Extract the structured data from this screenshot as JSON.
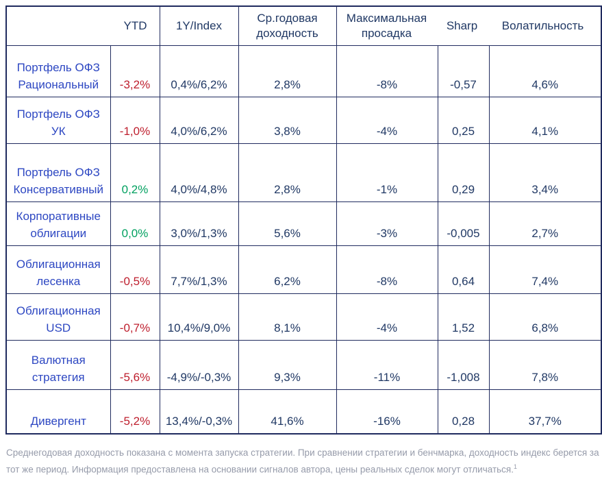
{
  "table": {
    "headers": {
      "ytd": "YTD",
      "one_year_index": "1Y/Index",
      "avg_return_line1": "Ср.годовая",
      "avg_return_line2": "доходность",
      "max_drawdown_line1": "Максимальная",
      "max_drawdown_line2": "просадка",
      "sharp": "Sharp",
      "volatility": "Волатильность"
    },
    "rows": [
      {
        "name_lines": [
          "Портфель ОФЗ",
          "Рациональный"
        ],
        "ytd": "-3,2%",
        "ytd_tone": "negative",
        "one_year_index": "0,4%/6,2%",
        "avg_return": "2,8%",
        "max_drawdown": "-8%",
        "sharp": "-0,57",
        "volatility": "4,6%"
      },
      {
        "name_lines": [
          "Портфель ОФЗ",
          "УК"
        ],
        "ytd": "-1,0%",
        "ytd_tone": "negative",
        "one_year_index": "4,0%/6,2%",
        "avg_return": "3,8%",
        "max_drawdown": "-4%",
        "sharp": "0,25",
        "volatility": "4,1%"
      },
      {
        "name_lines": [
          "Портфель ОФЗ",
          "Консервативный"
        ],
        "ytd": "0,2%",
        "ytd_tone": "positive",
        "one_year_index": "4,0%/4,8%",
        "avg_return": "2,8%",
        "max_drawdown": "-1%",
        "sharp": "0,29",
        "volatility": "3,4%"
      },
      {
        "name_lines": [
          "Корпоративные",
          "облигации"
        ],
        "ytd": "0,0%",
        "ytd_tone": "positive",
        "one_year_index": "3,0%/1,3%",
        "avg_return": "5,6%",
        "max_drawdown": "-3%",
        "sharp": "-0,005",
        "volatility": "2,7%"
      },
      {
        "name_lines": [
          "Облигационная",
          "лесенка"
        ],
        "ytd": "-0,5%",
        "ytd_tone": "negative",
        "one_year_index": "7,7%/1,3%",
        "avg_return": "6,2%",
        "max_drawdown": "-8%",
        "sharp": "0,64",
        "volatility": "7,4%"
      },
      {
        "name_lines": [
          "Облигационная",
          "USD"
        ],
        "ytd": "-0,7%",
        "ytd_tone": "negative",
        "one_year_index": "10,4%/9,0%",
        "avg_return": "8,1%",
        "max_drawdown": "-4%",
        "sharp": "1,52",
        "volatility": "6,8%"
      },
      {
        "name_lines": [
          "Валютная",
          "стратегия"
        ],
        "ytd": "-5,6%",
        "ytd_tone": "negative",
        "one_year_index": "-4,9%/-0,3%",
        "avg_return": "9,3%",
        "max_drawdown": "-11%",
        "sharp": "-1,008",
        "volatility": "7,8%"
      },
      {
        "name_lines": [
          "Дивергент"
        ],
        "ytd": "-5,2%",
        "ytd_tone": "negative",
        "one_year_index": "13,4%/-0,3%",
        "avg_return": "41,6%",
        "max_drawdown": "-16%",
        "sharp": "0,28",
        "volatility": "37,7%"
      }
    ]
  },
  "footnote": {
    "lines": [
      "Среднегодовая доходность показана с момента запуска стратегии. При сравнении стратегии и бенчмарка, доходность индекс берется за",
      "тот же период. Информация предоставлена на основании сигналов автора, цены реальных сделок могут отличаться."
    ],
    "superscript": "1"
  },
  "colors": {
    "border": "#1f2a5e",
    "header_and_values_text": "#203864",
    "strategy_label_text": "#2d47c2",
    "negative_ytd": "#be1e2d",
    "positive_ytd": "#00a05f",
    "footnote_text": "#969baa"
  }
}
